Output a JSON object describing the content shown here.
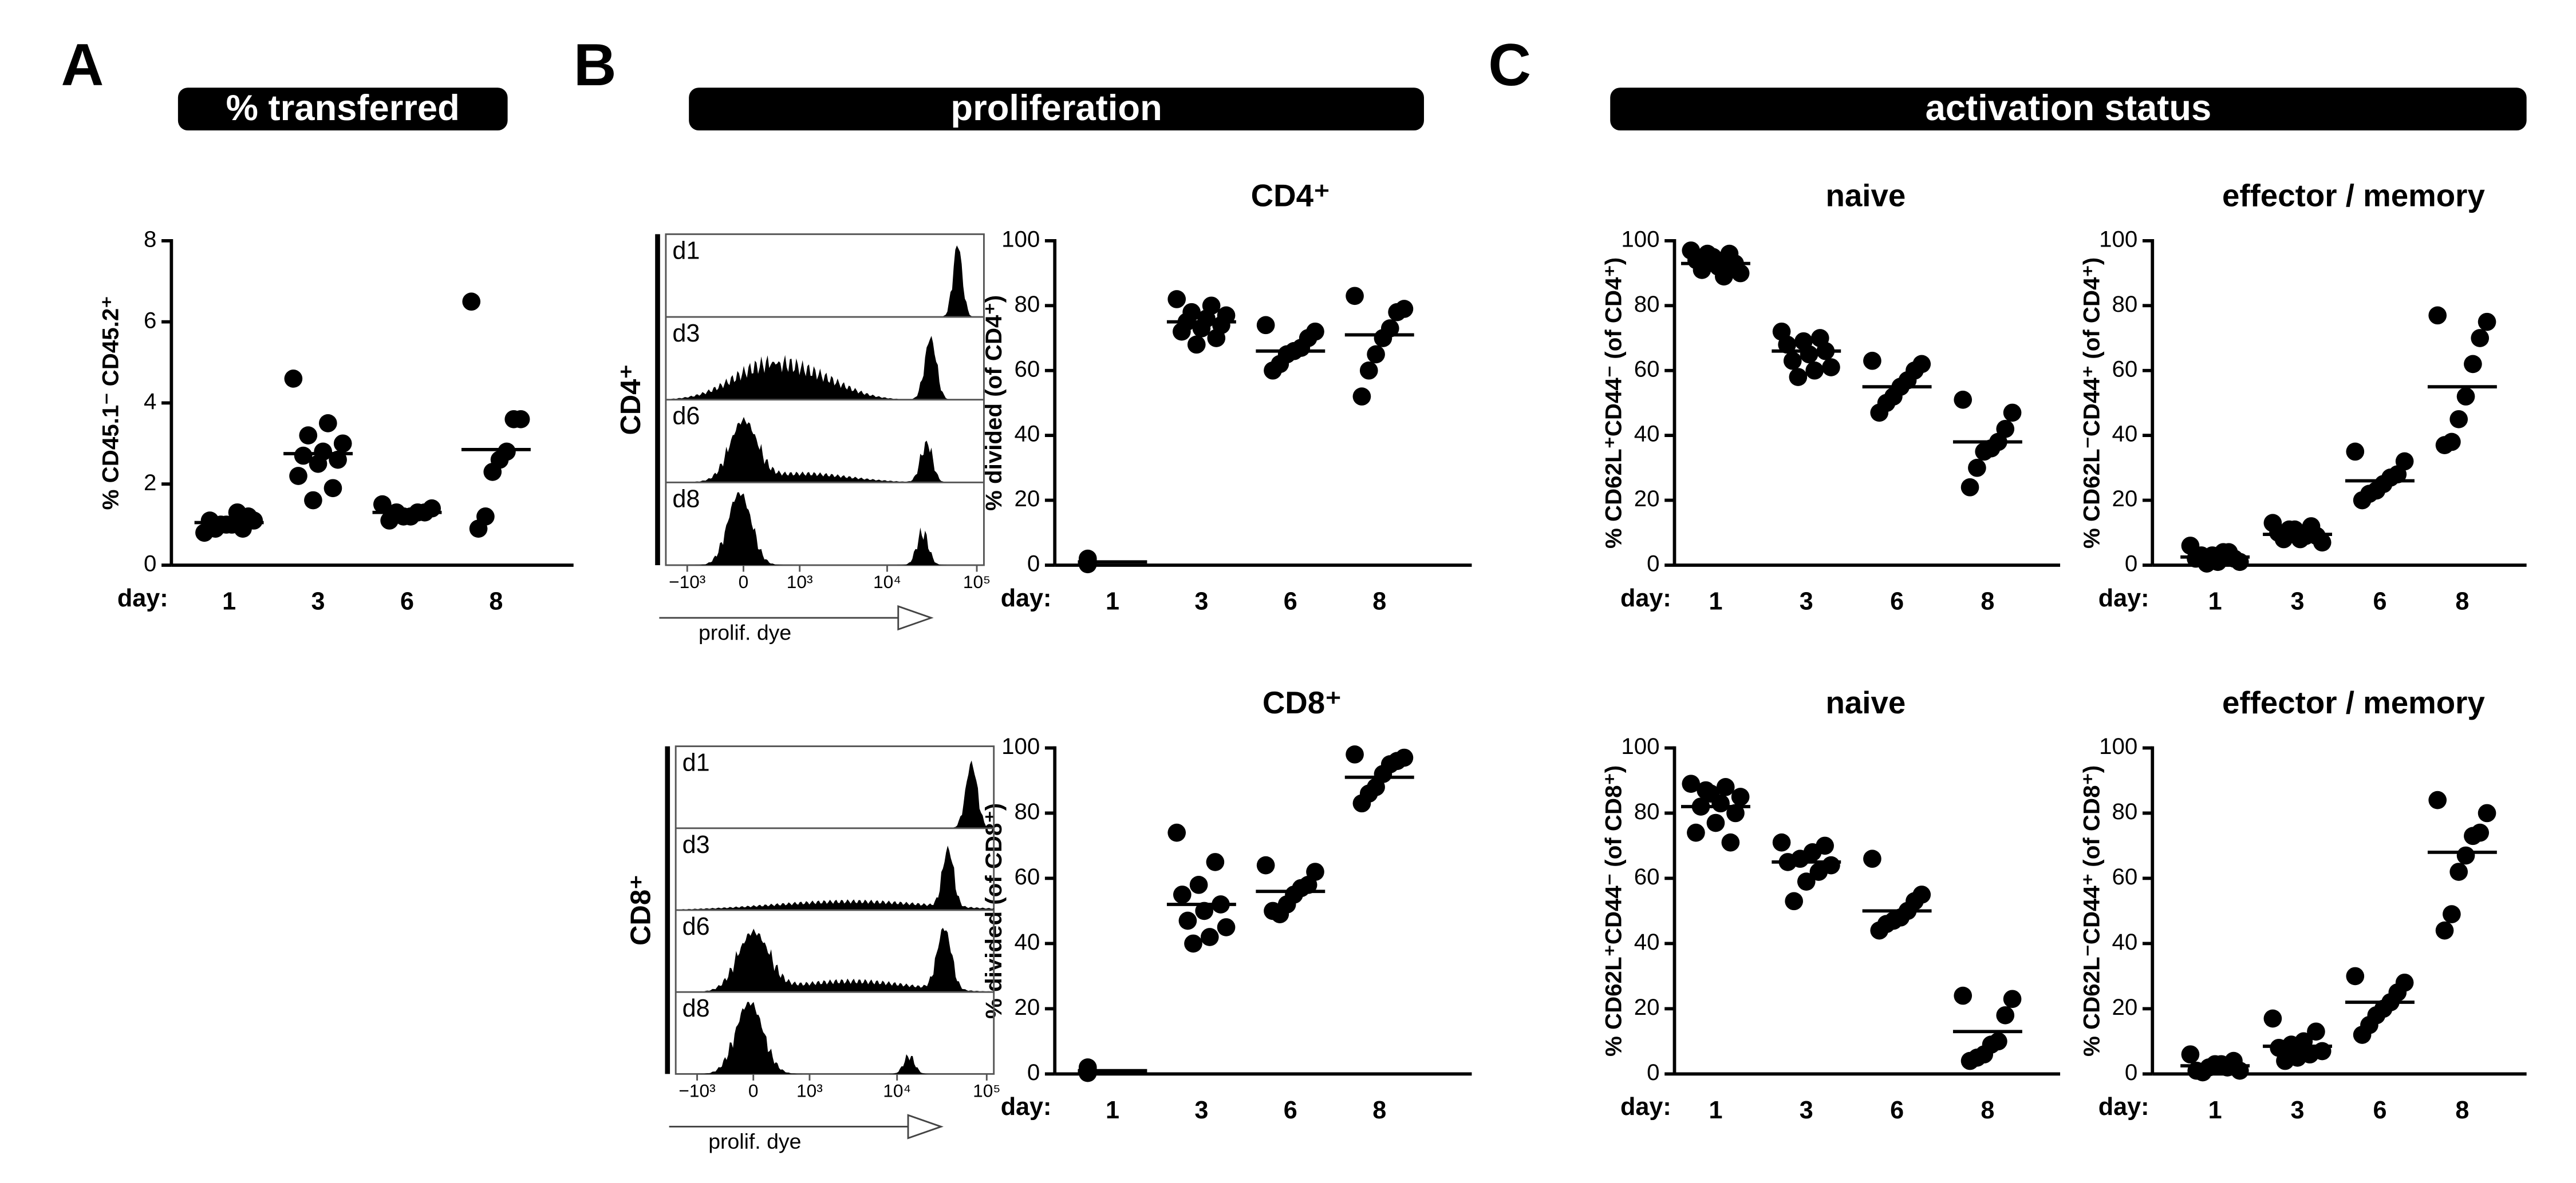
{
  "panel_labels": [
    "A",
    "B",
    "C"
  ],
  "headers": [
    "% transferred",
    "proliferation",
    "activation status"
  ],
  "chart_data": [
    {
      "type": "dot",
      "ylabel": "% CD45.1⁻ CD45.2⁺",
      "xlabel": "day:",
      "categories": [
        "1",
        "3",
        "6",
        "8"
      ],
      "color": "#000000",
      "ylim": [
        0,
        8
      ],
      "yticks": [
        0,
        2,
        4,
        6,
        8
      ],
      "values": [
        [
          0.8,
          0.9,
          1.0,
          1.1,
          1.2,
          1.0,
          0.9,
          1.1,
          1.3,
          1.0
        ],
        [
          4.6,
          3.5,
          3.2,
          3.0,
          2.8,
          2.7,
          2.6,
          2.5,
          2.2,
          1.9,
          1.6
        ],
        [
          1.5,
          1.4,
          1.3,
          1.3,
          1.2,
          1.2,
          1.3,
          1.1
        ],
        [
          6.5,
          3.6,
          3.6,
          2.8,
          2.6,
          2.3,
          1.2,
          0.9
        ]
      ],
      "means": [
        1.05,
        2.75,
        1.3,
        2.85
      ]
    },
    {
      "type": "dot",
      "title": "CD4⁺",
      "ylabel": "% divided (of CD4⁺)",
      "xlabel": "day:",
      "categories": [
        "1",
        "3",
        "6",
        "8"
      ],
      "color": "#000000",
      "ylim": [
        0,
        100
      ],
      "yticks": [
        0,
        20,
        40,
        60,
        80,
        100
      ],
      "values": [
        [
          1,
          0.5,
          1.5,
          2,
          0.8,
          1,
          0.3
        ],
        [
          82,
          80,
          78,
          77,
          76,
          75,
          74,
          73,
          72,
          70,
          68
        ],
        [
          74,
          72,
          70,
          67,
          66,
          65,
          62,
          60
        ],
        [
          83,
          79,
          78,
          73,
          70,
          65,
          60,
          52
        ]
      ],
      "means": [
        1,
        75,
        66,
        71
      ]
    },
    {
      "type": "dot",
      "title": "CD8⁺",
      "ylabel": "% divided (of CD8⁺)",
      "xlabel": "day:",
      "categories": [
        "1",
        "3",
        "6",
        "8"
      ],
      "color": "#000000",
      "ylim": [
        0,
        100
      ],
      "yticks": [
        0,
        20,
        40,
        60,
        80,
        100
      ],
      "values": [
        [
          1,
          0.5,
          1.5,
          0.8,
          1.2,
          0.3,
          2
        ],
        [
          74,
          65,
          58,
          55,
          52,
          50,
          47,
          45,
          42,
          40
        ],
        [
          64,
          62,
          58,
          57,
          55,
          52,
          49,
          50
        ],
        [
          98,
          97,
          96,
          95,
          92,
          88,
          86,
          83
        ]
      ],
      "means": [
        1,
        52,
        56,
        91
      ]
    },
    {
      "type": "dot",
      "title": "naive",
      "ylabel": "% CD62L⁺CD44⁻ (of CD4⁺)",
      "xlabel": "day:",
      "categories": [
        "1",
        "3",
        "6",
        "8"
      ],
      "color": "#000000",
      "ylim": [
        0,
        100
      ],
      "yticks": [
        0,
        20,
        40,
        60,
        80,
        100
      ],
      "values": [
        [
          97,
          96,
          95,
          94,
          93,
          92,
          91,
          90,
          89,
          96
        ],
        [
          72,
          70,
          69,
          68,
          66,
          65,
          63,
          61,
          60,
          58
        ],
        [
          63,
          62,
          60,
          57,
          55,
          52,
          50,
          47
        ],
        [
          51,
          47,
          42,
          38,
          36,
          35,
          30,
          24
        ]
      ],
      "means": [
        93,
        66,
        55,
        38
      ]
    },
    {
      "type": "dot",
      "title": "effector / memory",
      "ylabel": "% CD62L⁻CD44⁺ (of CD4⁺)",
      "xlabel": "day:",
      "categories": [
        "1",
        "3",
        "6",
        "8"
      ],
      "color": "#000000",
      "ylim": [
        0,
        100
      ],
      "yticks": [
        0,
        20,
        40,
        60,
        80,
        100
      ],
      "values": [
        [
          6,
          4,
          3,
          2,
          2,
          1,
          3,
          1,
          4,
          0.5
        ],
        [
          13,
          12,
          11,
          10,
          9,
          8,
          8,
          7,
          9,
          11
        ],
        [
          35,
          32,
          28,
          27,
          25,
          23,
          22,
          20
        ],
        [
          77,
          75,
          70,
          62,
          52,
          45,
          38,
          37
        ]
      ],
      "means": [
        2.5,
        9.5,
        26,
        55
      ]
    },
    {
      "type": "dot",
      "title": "naive",
      "ylabel": "% CD62L⁺CD44⁻ (of CD8⁺)",
      "xlabel": "day:",
      "categories": [
        "1",
        "3",
        "6",
        "8"
      ],
      "color": "#000000",
      "ylim": [
        0,
        100
      ],
      "yticks": [
        0,
        20,
        40,
        60,
        80,
        100
      ],
      "values": [
        [
          89,
          88,
          87,
          85,
          83,
          82,
          80,
          77,
          74,
          71,
          86
        ],
        [
          71,
          70,
          68,
          66,
          65,
          64,
          62,
          59,
          53
        ],
        [
          66,
          55,
          53,
          50,
          48,
          47,
          46,
          44
        ],
        [
          24,
          23,
          18,
          10,
          9,
          6,
          5,
          4
        ]
      ],
      "means": [
        82,
        65,
        50,
        13
      ]
    },
    {
      "type": "dot",
      "title": "effector / memory",
      "ylabel": "% CD62L⁻CD44⁺ (of CD8⁺)",
      "xlabel": "day:",
      "categories": [
        "1",
        "3",
        "6",
        "8"
      ],
      "color": "#000000",
      "ylim": [
        0,
        100
      ],
      "yticks": [
        0,
        20,
        40,
        60,
        80,
        100
      ],
      "values": [
        [
          6,
          4,
          3,
          2,
          1,
          1,
          2,
          3,
          0.5
        ],
        [
          17,
          13,
          10,
          9,
          8,
          7,
          6,
          5,
          4
        ],
        [
          30,
          28,
          25,
          22,
          20,
          18,
          15,
          12
        ],
        [
          84,
          80,
          74,
          73,
          67,
          62,
          49,
          44
        ]
      ],
      "means": [
        2.5,
        8.5,
        22,
        68
      ]
    },
    {
      "type": "histogram-stack",
      "ylabel": "CD4⁺",
      "xlabel": "prolif. dye",
      "rows": [
        "d1",
        "d3",
        "d6",
        "d8"
      ],
      "color": "#000000",
      "xlim": [
        -1800,
        120000
      ],
      "xticks": [
        {
          "value": -1000,
          "label": "−10³"
        },
        0,
        {
          "value": 1000,
          "label": "10³"
        },
        {
          "value": 10000,
          "label": "10⁴"
        },
        {
          "value": 100000,
          "label": "10⁵"
        }
      ]
    },
    {
      "type": "histogram-stack",
      "ylabel": "CD8⁺",
      "xlabel": "prolif. dye",
      "rows": [
        "d1",
        "d3",
        "d6",
        "d8"
      ],
      "color": "#000000",
      "xlim": [
        -1800,
        120000
      ],
      "xticks": [
        {
          "value": -1000,
          "label": "−10³"
        },
        0,
        {
          "value": 1000,
          "label": "10³"
        },
        {
          "value": 10000,
          "label": "10⁴"
        },
        {
          "value": 100000,
          "label": "10⁵"
        }
      ]
    }
  ]
}
